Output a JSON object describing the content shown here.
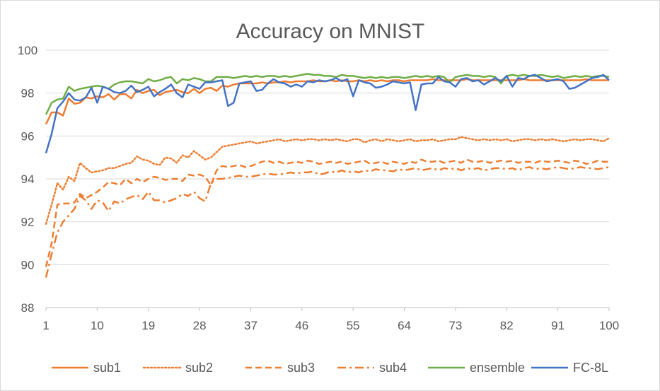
{
  "chart_data": {
    "type": "line",
    "title": "Accuracy on MNIST",
    "xlabel": "",
    "ylabel": "",
    "xlim": [
      1,
      100
    ],
    "ylim": [
      88,
      100
    ],
    "x_ticks": [
      1,
      10,
      19,
      28,
      37,
      46,
      55,
      64,
      73,
      82,
      91,
      100
    ],
    "y_ticks": [
      88,
      90,
      92,
      94,
      96,
      98,
      100
    ],
    "grid": "horizontal",
    "legend_position": "bottom",
    "series": [
      {
        "name": "sub1",
        "color": "#ed7d31",
        "dash": "solid",
        "values": [
          96.55,
          97.1,
          97.1,
          96.95,
          97.75,
          97.5,
          97.55,
          97.8,
          97.75,
          97.85,
          97.8,
          97.95,
          97.7,
          97.95,
          97.95,
          97.75,
          98.15,
          98.0,
          98.1,
          98.15,
          97.9,
          98.05,
          98.1,
          98.15,
          98.05,
          98.0,
          98.2,
          98.0,
          98.2,
          98.25,
          98.1,
          98.35,
          98.3,
          98.4,
          98.45,
          98.45,
          98.45,
          98.45,
          98.5,
          98.45,
          98.5,
          98.5,
          98.55,
          98.5,
          98.55,
          98.55,
          98.55,
          98.6,
          98.55,
          98.55,
          98.6,
          98.55,
          98.6,
          98.55,
          98.55,
          98.6,
          98.55,
          98.6,
          98.55,
          98.6,
          98.55,
          98.6,
          98.6,
          98.55,
          98.6,
          98.6,
          98.6,
          98.6,
          98.65,
          98.6,
          98.6,
          98.6,
          98.6,
          98.6,
          98.65,
          98.6,
          98.6,
          98.6,
          98.6,
          98.6,
          98.6,
          98.6,
          98.6,
          98.6,
          98.65,
          98.6,
          98.6,
          98.6,
          98.6,
          98.6,
          98.6,
          98.6,
          98.6,
          98.6,
          98.6,
          98.65,
          98.6,
          98.6,
          98.6,
          98.6
        ]
      },
      {
        "name": "sub2",
        "color": "#ed7d31",
        "dash": "dotted",
        "values": [
          91.9,
          92.8,
          93.8,
          93.5,
          94.1,
          93.9,
          94.75,
          94.5,
          94.3,
          94.35,
          94.4,
          94.5,
          94.5,
          94.6,
          94.7,
          94.75,
          95.05,
          94.9,
          94.85,
          94.7,
          94.65,
          95.0,
          94.95,
          94.75,
          95.1,
          95.0,
          95.3,
          95.1,
          94.9,
          95.0,
          95.25,
          95.5,
          95.55,
          95.6,
          95.65,
          95.7,
          95.75,
          95.65,
          95.7,
          95.75,
          95.8,
          95.85,
          95.75,
          95.8,
          95.85,
          95.8,
          95.85,
          95.85,
          95.8,
          95.85,
          95.8,
          95.85,
          95.8,
          95.75,
          95.85,
          95.85,
          95.7,
          95.8,
          95.85,
          95.75,
          95.85,
          95.8,
          95.75,
          95.8,
          95.85,
          95.75,
          95.8,
          95.8,
          95.85,
          95.75,
          95.8,
          95.85,
          95.85,
          95.95,
          95.9,
          95.85,
          95.8,
          95.85,
          95.8,
          95.85,
          95.8,
          95.85,
          95.75,
          95.8,
          95.85,
          95.85,
          95.8,
          95.85,
          95.8,
          95.85,
          95.8,
          95.75,
          95.8,
          95.85,
          95.8,
          95.85,
          95.85,
          95.8,
          95.75,
          95.9
        ]
      },
      {
        "name": "sub3",
        "color": "#ed7d31",
        "dash": "dashed",
        "values": [
          89.9,
          91.0,
          92.8,
          92.85,
          92.85,
          92.9,
          93.3,
          93.1,
          93.25,
          93.4,
          93.6,
          93.85,
          93.8,
          93.7,
          94.0,
          93.8,
          94.0,
          93.85,
          94.0,
          94.1,
          94.05,
          93.95,
          94.0,
          94.0,
          93.9,
          94.2,
          94.15,
          94.2,
          94.1,
          93.7,
          94.4,
          94.6,
          94.55,
          94.6,
          94.65,
          94.55,
          94.6,
          94.7,
          94.8,
          94.85,
          94.75,
          94.8,
          94.7,
          94.75,
          94.8,
          94.75,
          94.85,
          94.8,
          94.7,
          94.75,
          94.8,
          94.75,
          94.8,
          94.7,
          94.75,
          94.8,
          94.85,
          94.7,
          94.75,
          94.8,
          94.7,
          94.8,
          94.75,
          94.7,
          94.8,
          94.75,
          94.9,
          94.8,
          94.8,
          94.85,
          94.75,
          94.8,
          94.85,
          94.75,
          94.9,
          94.8,
          94.8,
          94.85,
          94.75,
          94.8,
          94.85,
          94.8,
          94.85,
          94.75,
          94.8,
          94.8,
          94.75,
          94.85,
          94.8,
          94.8,
          94.85,
          94.8,
          94.75,
          94.85,
          94.8,
          94.7,
          94.75,
          94.85,
          94.8,
          94.8
        ]
      },
      {
        "name": "sub4",
        "color": "#ed7d31",
        "dash": "dashdot",
        "values": [
          89.4,
          90.5,
          91.5,
          92.0,
          92.3,
          92.6,
          93.2,
          93.0,
          92.6,
          93.0,
          92.9,
          92.5,
          92.95,
          92.85,
          93.05,
          93.15,
          93.25,
          93.05,
          93.4,
          93.0,
          93.0,
          92.9,
          93.0,
          93.1,
          93.3,
          93.2,
          93.4,
          93.1,
          92.95,
          93.8,
          94.0,
          94.0,
          94.05,
          94.1,
          94.15,
          94.1,
          94.1,
          94.15,
          94.2,
          94.25,
          94.2,
          94.2,
          94.25,
          94.3,
          94.25,
          94.3,
          94.3,
          94.35,
          94.2,
          94.25,
          94.35,
          94.3,
          94.4,
          94.3,
          94.35,
          94.3,
          94.4,
          94.35,
          94.45,
          94.4,
          94.4,
          94.35,
          94.45,
          94.4,
          94.45,
          94.5,
          94.4,
          94.45,
          94.5,
          94.4,
          94.5,
          94.45,
          94.5,
          94.4,
          94.5,
          94.45,
          94.5,
          94.4,
          94.45,
          94.5,
          94.5,
          94.45,
          94.5,
          94.4,
          94.5,
          94.55,
          94.45,
          94.5,
          94.45,
          94.5,
          94.55,
          94.5,
          94.45,
          94.5,
          94.55,
          94.5,
          94.5,
          94.45,
          94.5,
          94.55
        ]
      },
      {
        "name": "ensemble",
        "color": "#70ad47",
        "dash": "solid",
        "values": [
          97.0,
          97.55,
          97.7,
          97.75,
          98.3,
          98.1,
          98.2,
          98.25,
          98.3,
          98.35,
          98.3,
          98.2,
          98.4,
          98.5,
          98.55,
          98.55,
          98.5,
          98.45,
          98.65,
          98.55,
          98.6,
          98.7,
          98.75,
          98.45,
          98.65,
          98.6,
          98.7,
          98.65,
          98.55,
          98.55,
          98.75,
          98.75,
          98.75,
          98.7,
          98.75,
          98.8,
          98.75,
          98.8,
          98.75,
          98.8,
          98.8,
          98.75,
          98.8,
          98.75,
          98.8,
          98.85,
          98.9,
          98.85,
          98.85,
          98.8,
          98.8,
          98.75,
          98.85,
          98.8,
          98.8,
          98.75,
          98.7,
          98.75,
          98.7,
          98.75,
          98.7,
          98.75,
          98.75,
          98.7,
          98.75,
          98.8,
          98.75,
          98.8,
          98.75,
          98.8,
          98.75,
          98.5,
          98.75,
          98.8,
          98.85,
          98.8,
          98.8,
          98.75,
          98.8,
          98.75,
          98.45,
          98.8,
          98.85,
          98.8,
          98.85,
          98.8,
          98.8,
          98.85,
          98.8,
          98.75,
          98.8,
          98.7,
          98.75,
          98.8,
          98.75,
          98.8,
          98.75,
          98.8,
          98.8,
          98.75
        ]
      },
      {
        "name": "FC-8L",
        "color": "#4472c4",
        "dash": "solid",
        "values": [
          95.2,
          96.1,
          97.3,
          97.6,
          98.0,
          97.7,
          97.65,
          97.8,
          98.25,
          97.55,
          98.3,
          98.2,
          98.05,
          98.0,
          98.1,
          98.35,
          98.05,
          98.15,
          98.3,
          97.85,
          98.05,
          98.2,
          98.4,
          98.0,
          97.8,
          98.4,
          98.3,
          98.2,
          98.5,
          98.5,
          98.55,
          98.6,
          97.4,
          97.55,
          98.45,
          98.5,
          98.55,
          98.1,
          98.15,
          98.45,
          98.65,
          98.5,
          98.45,
          98.3,
          98.4,
          98.3,
          98.55,
          98.5,
          98.6,
          98.55,
          98.6,
          98.7,
          98.55,
          98.65,
          97.85,
          98.6,
          98.5,
          98.45,
          98.25,
          98.3,
          98.4,
          98.55,
          98.5,
          98.45,
          98.5,
          97.2,
          98.4,
          98.45,
          98.45,
          98.75,
          98.55,
          98.5,
          98.3,
          98.65,
          98.7,
          98.55,
          98.6,
          98.4,
          98.55,
          98.7,
          98.55,
          98.8,
          98.3,
          98.7,
          98.65,
          98.8,
          98.85,
          98.7,
          98.55,
          98.6,
          98.65,
          98.55,
          98.2,
          98.25,
          98.4,
          98.55,
          98.7,
          98.75,
          98.85,
          98.6
        ]
      }
    ]
  }
}
